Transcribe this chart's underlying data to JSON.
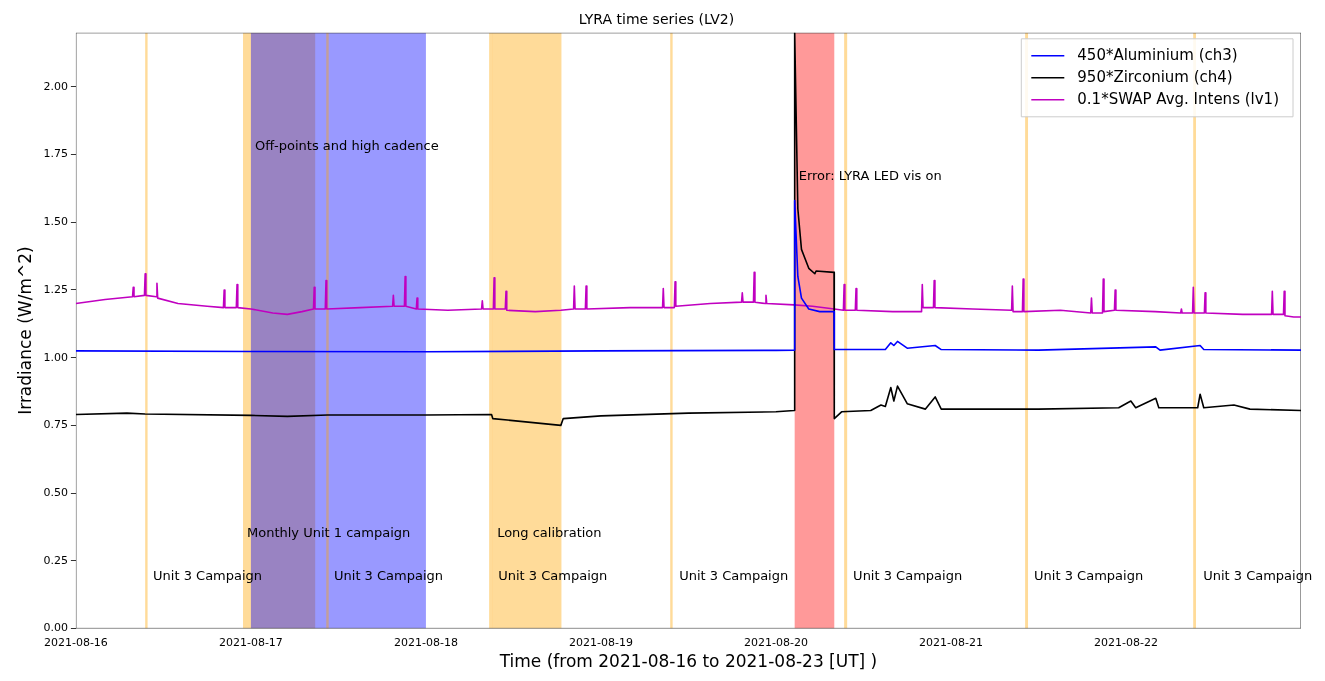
{
  "chart_data": {
    "type": "line",
    "title": "LYRA time series (LV2)",
    "xlabel": "Time (from 2021-08-16 to 2021-08-23 [UT] )",
    "ylabel": "Irradiance (W/m^2)",
    "xlim": [
      "2021-08-16",
      "2021-08-23"
    ],
    "xticks": [
      "2021-08-16",
      "2021-08-17",
      "2021-08-18",
      "2021-08-19",
      "2021-08-20",
      "2021-08-21",
      "2021-08-22"
    ],
    "ylim": [
      0,
      2.2
    ],
    "yticks": [
      {
        "value": 0,
        "label": "0.00"
      },
      {
        "value": 0.25,
        "label": "0.25"
      },
      {
        "value": 0.5,
        "label": "0.50"
      },
      {
        "value": 0.75,
        "label": "0.75"
      },
      {
        "value": 1,
        "label": "1.00"
      },
      {
        "value": 1.25,
        "label": "1.25"
      },
      {
        "value": 1.5,
        "label": "1.50"
      },
      {
        "value": 1.75,
        "label": "1.75"
      },
      {
        "value": 2,
        "label": "2.00"
      }
    ],
    "grid": false,
    "legend": "top right",
    "marker": "none",
    "line_style": "solid",
    "series": [
      {
        "name": "450*Aluminium (ch3)",
        "color": "#0000ff",
        "x": [
          "2021-08-16T00:00",
          "2021-08-17T00:00",
          "2021-08-18T00:00",
          "2021-08-19T00:00",
          "2021-08-20T00:00",
          "2021-08-20T02:30",
          "2021-08-20T02:34",
          "2021-08-20T03:00",
          "2021-08-20T03:30",
          "2021-08-20T04:30",
          "2021-08-20T06:00",
          "2021-08-20T07:58",
          "2021-08-20T08:00",
          "2021-08-20T15:00",
          "2021-08-20T15:45",
          "2021-08-20T16:10",
          "2021-08-20T16:40",
          "2021-08-20T18:00",
          "2021-08-20T21:50",
          "2021-08-20T22:40",
          "2021-08-21T12:00",
          "2021-08-22T04:05",
          "2021-08-22T04:40",
          "2021-08-22T10:10",
          "2021-08-22T10:40",
          "2021-08-23T00:00"
        ],
        "values": [
          1.025,
          1.023,
          1.022,
          1.025,
          1.027,
          1.028,
          1.58,
          1.3,
          1.22,
          1.18,
          1.17,
          1.17,
          1.03,
          1.03,
          1.055,
          1.045,
          1.06,
          1.035,
          1.045,
          1.03,
          1.028,
          1.04,
          1.028,
          1.045,
          1.03,
          1.028
        ]
      },
      {
        "name": "950*Zirconium (ch4)",
        "color": "#000000",
        "x": [
          "2021-08-16T00:00",
          "2021-08-16T07:00",
          "2021-08-16T09:30",
          "2021-08-17T00:00",
          "2021-08-17T05:00",
          "2021-08-17T10:30",
          "2021-08-18T00:00",
          "2021-08-18T09:00",
          "2021-08-18T09:10",
          "2021-08-18T18:30",
          "2021-08-18T18:50",
          "2021-08-19T00:00",
          "2021-08-19T12:00",
          "2021-08-20T00:00",
          "2021-08-20T02:30",
          "2021-08-20T02:34",
          "2021-08-20T03:00",
          "2021-08-20T03:30",
          "2021-08-20T04:30",
          "2021-08-20T05:20",
          "2021-08-20T05:30",
          "2021-08-20T07:58",
          "2021-08-20T08:00",
          "2021-08-20T09:00",
          "2021-08-20T13:00",
          "2021-08-20T14:24",
          "2021-08-20T15:00",
          "2021-08-20T15:45",
          "2021-08-20T16:10",
          "2021-08-20T16:40",
          "2021-08-20T18:00",
          "2021-08-20T20:30",
          "2021-08-20T21:50",
          "2021-08-20T22:40",
          "2021-08-21T12:00",
          "2021-08-21T23:00",
          "2021-08-22T00:40",
          "2021-08-22T01:20",
          "2021-08-22T04:05",
          "2021-08-22T04:30",
          "2021-08-22T09:50",
          "2021-08-22T10:10",
          "2021-08-22T10:40",
          "2021-08-22T14:48",
          "2021-08-22T17:00",
          "2021-08-23T00:00"
        ],
        "values": [
          0.79,
          0.795,
          0.792,
          0.787,
          0.783,
          0.788,
          0.788,
          0.79,
          0.775,
          0.75,
          0.775,
          0.785,
          0.795,
          0.8,
          0.805,
          2.2,
          1.55,
          1.4,
          1.33,
          1.31,
          1.32,
          1.315,
          0.775,
          0.8,
          0.805,
          0.825,
          0.82,
          0.89,
          0.84,
          0.895,
          0.83,
          0.81,
          0.855,
          0.81,
          0.81,
          0.815,
          0.84,
          0.815,
          0.85,
          0.815,
          0.815,
          0.865,
          0.815,
          0.825,
          0.81,
          0.805
        ]
      },
      {
        "name": "0.1*SWAP Avg. Intens (lv1)",
        "color": "#c000c0",
        "x": [
          "2021-08-16T00:00",
          "2021-08-16T04:00",
          "2021-08-16T07:46",
          "2021-08-16T07:52",
          "2021-08-16T07:58",
          "2021-08-16T09:24",
          "2021-08-16T09:30",
          "2021-08-16T09:36",
          "2021-08-16T11:01",
          "2021-08-16T11:07",
          "2021-08-16T11:13",
          "2021-08-16T14:00",
          "2021-08-16T18:00",
          "2021-08-16T20:14",
          "2021-08-16T20:20",
          "2021-08-16T20:26",
          "2021-08-16T22:00",
          "2021-08-16T22:06",
          "2021-08-16T22:12",
          "2021-08-17T00:00",
          "2021-08-17T03:00",
          "2021-08-17T05:00",
          "2021-08-17T07:00",
          "2021-08-17T08:35",
          "2021-08-17T08:41",
          "2021-08-17T08:47",
          "2021-08-17T10:12",
          "2021-08-17T10:18",
          "2021-08-17T10:24",
          "2021-08-17T15:00",
          "2021-08-17T19:26",
          "2021-08-17T19:32",
          "2021-08-17T19:38",
          "2021-08-17T21:03",
          "2021-08-17T21:09",
          "2021-08-17T21:15",
          "2021-08-17T22:41",
          "2021-08-17T22:47",
          "2021-08-17T22:53",
          "2021-08-18T03:00",
          "2021-08-18T07:38",
          "2021-08-18T07:44",
          "2021-08-18T07:50",
          "2021-08-18T09:15",
          "2021-08-18T09:21",
          "2021-08-18T09:27",
          "2021-08-18T10:53",
          "2021-08-18T10:59",
          "2021-08-18T11:05",
          "2021-08-18T15:00",
          "2021-08-18T18:30",
          "2021-08-18T20:15",
          "2021-08-18T20:21",
          "2021-08-18T20:27",
          "2021-08-18T21:52",
          "2021-08-18T21:58",
          "2021-08-18T22:04",
          "2021-08-19T04:00",
          "2021-08-19T08:27",
          "2021-08-19T08:33",
          "2021-08-19T08:39",
          "2021-08-19T10:04",
          "2021-08-19T10:10",
          "2021-08-19T10:16",
          "2021-08-19T15:00",
          "2021-08-19T19:17",
          "2021-08-19T19:23",
          "2021-08-19T19:29",
          "2021-08-19T20:55",
          "2021-08-19T21:01",
          "2021-08-19T21:07",
          "2021-08-19T22:32",
          "2021-08-19T22:38",
          "2021-08-19T22:44",
          "2021-08-20T02:30",
          "2021-08-20T05:00",
          "2021-08-20T08:00",
          "2021-08-20T09:15",
          "2021-08-20T09:21",
          "2021-08-20T09:27",
          "2021-08-20T10:53",
          "2021-08-20T10:59",
          "2021-08-20T11:05",
          "2021-08-20T16:00",
          "2021-08-20T19:58",
          "2021-08-20T20:04",
          "2021-08-20T20:10",
          "2021-08-20T21:36",
          "2021-08-20T21:42",
          "2021-08-20T21:48",
          "2021-08-21T03:00",
          "2021-08-21T08:19",
          "2021-08-21T08:25",
          "2021-08-21T08:31",
          "2021-08-21T09:48",
          "2021-08-21T09:54",
          "2021-08-21T10:00",
          "2021-08-21T15:00",
          "2021-08-21T19:10",
          "2021-08-21T19:16",
          "2021-08-21T19:22",
          "2021-08-21T20:47",
          "2021-08-21T20:53",
          "2021-08-21T20:59",
          "2021-08-21T22:25",
          "2021-08-21T22:31",
          "2021-08-21T22:37",
          "2021-08-22T04:00",
          "2021-08-22T07:30",
          "2021-08-22T07:36",
          "2021-08-22T07:42",
          "2021-08-22T09:08",
          "2021-08-22T09:14",
          "2021-08-22T09:20",
          "2021-08-22T10:45",
          "2021-08-22T10:51",
          "2021-08-22T10:57",
          "2021-08-22T16:00",
          "2021-08-22T19:58",
          "2021-08-22T20:04",
          "2021-08-22T20:10",
          "2021-08-22T21:36",
          "2021-08-22T21:42",
          "2021-08-22T21:48",
          "2021-08-22T23:00",
          "2021-08-23T00:00"
        ],
        "values": [
          1.2,
          1.215,
          1.225,
          1.26,
          1.225,
          1.23,
          1.31,
          1.23,
          1.225,
          1.275,
          1.22,
          1.2,
          1.19,
          1.185,
          1.25,
          1.185,
          1.185,
          1.27,
          1.185,
          1.18,
          1.165,
          1.16,
          1.17,
          1.18,
          1.26,
          1.18,
          1.18,
          1.285,
          1.18,
          1.185,
          1.19,
          1.23,
          1.19,
          1.19,
          1.3,
          1.19,
          1.18,
          1.22,
          1.18,
          1.175,
          1.18,
          1.21,
          1.18,
          1.18,
          1.295,
          1.18,
          1.18,
          1.245,
          1.175,
          1.17,
          1.175,
          1.18,
          1.265,
          1.18,
          1.18,
          1.265,
          1.18,
          1.185,
          1.185,
          1.255,
          1.185,
          1.185,
          1.28,
          1.19,
          1.2,
          1.205,
          1.24,
          1.205,
          1.205,
          1.315,
          1.205,
          1.2,
          1.23,
          1.2,
          1.195,
          1.19,
          1.18,
          1.175,
          1.27,
          1.175,
          1.175,
          1.255,
          1.175,
          1.17,
          1.17,
          1.27,
          1.185,
          1.185,
          1.285,
          1.185,
          1.18,
          1.175,
          1.265,
          1.17,
          1.17,
          1.29,
          1.17,
          1.175,
          1.165,
          1.22,
          1.165,
          1.165,
          1.29,
          1.17,
          1.175,
          1.25,
          1.175,
          1.17,
          1.165,
          1.18,
          1.165,
          1.165,
          1.26,
          1.165,
          1.165,
          1.24,
          1.165,
          1.16,
          1.16,
          1.245,
          1.16,
          1.16,
          1.245,
          1.155,
          1.15,
          1.15
        ]
      }
    ],
    "bands": [
      {
        "axis": "x",
        "from": "2021-08-16T09:30",
        "to": "2021-08-16T09:50",
        "color": "#ffa500"
      },
      {
        "axis": "x",
        "from": "2021-08-16T22:55",
        "to": "2021-08-17T08:49",
        "color": "#ffa500"
      },
      {
        "axis": "x",
        "from": "2021-08-17T00:00",
        "to": "2021-08-18T00:00",
        "color": "#0000ff"
      },
      {
        "axis": "x",
        "from": "2021-08-17T10:20",
        "to": "2021-08-17T10:40",
        "color": "#ffa500"
      },
      {
        "axis": "x",
        "from": "2021-08-18T08:40",
        "to": "2021-08-18T09:05",
        "color": "#ffa500"
      },
      {
        "axis": "x",
        "from": "2021-08-18T09:04",
        "to": "2021-08-18T18:35",
        "color": "#ffa500"
      },
      {
        "axis": "x",
        "from": "2021-08-19T09:30",
        "to": "2021-08-19T09:50",
        "color": "#ffa500"
      },
      {
        "axis": "x",
        "from": "2021-08-20T02:34",
        "to": "2021-08-20T08:00",
        "color": "#ff0000"
      },
      {
        "axis": "x",
        "from": "2021-08-20T09:21",
        "to": "2021-08-20T09:46",
        "color": "#ffa500"
      },
      {
        "axis": "x",
        "from": "2021-08-21T10:10",
        "to": "2021-08-21T10:34",
        "color": "#ffa500"
      },
      {
        "axis": "x",
        "from": "2021-08-22T09:13",
        "to": "2021-08-22T09:36",
        "color": "#ffa500"
      }
    ],
    "annotations": [
      {
        "text": "Unit 3 Campaign",
        "x": "2021-08-16T10:02",
        "y": 0.19
      },
      {
        "text": "Monthly Unit 1 campaign",
        "x": "2021-08-16T22:55",
        "y": 0.35
      },
      {
        "text": "Off-points and high cadence",
        "x": "2021-08-17T00:00",
        "y": 1.78
      },
      {
        "text": "Unit 3 Campaign",
        "x": "2021-08-17T10:51",
        "y": 0.19
      },
      {
        "text": "Long calibration",
        "x": "2021-08-18T09:13",
        "y": 0.35
      },
      {
        "text": "Unit 3 Campaign",
        "x": "2021-08-18T09:22",
        "y": 0.19
      },
      {
        "text": "Unit 3 Campaign",
        "x": "2021-08-19T10:11",
        "y": 0.19
      },
      {
        "text": "Error: LYRA LED vis on",
        "x": "2021-08-20T02:34",
        "y": 1.67
      },
      {
        "text": "Unit 3 Campaign",
        "x": "2021-08-20T10:02",
        "y": 0.19
      },
      {
        "text": "Unit 3 Campaign",
        "x": "2021-08-21T10:51",
        "y": 0.19
      },
      {
        "text": "Unit 3 Campaign",
        "x": "2021-08-22T10:02",
        "y": 0.19
      }
    ]
  }
}
